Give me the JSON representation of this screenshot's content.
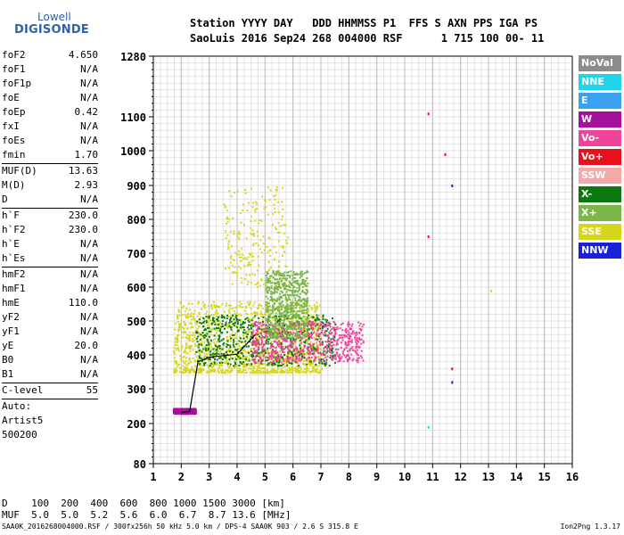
{
  "logo": {
    "line1": "Lowell",
    "line2": "DIGISONDE"
  },
  "header": {
    "line1": "Station YYYY DAY   DDD HHMMSS P1  FFS S AXN PPS IGA PS",
    "line2": "SaoLuis 2016 Sep24 268 004000 RSF      1 715 100 00- 11"
  },
  "params_groups": [
    [
      {
        "name": "foF2",
        "value": "4.650"
      },
      {
        "name": "foF1",
        "value": "N/A"
      },
      {
        "name": "foF1p",
        "value": "N/A"
      },
      {
        "name": "foE",
        "value": "N/A"
      },
      {
        "name": "foEp",
        "value": "0.42"
      },
      {
        "name": "fxI",
        "value": "N/A"
      },
      {
        "name": "foEs",
        "value": "N/A"
      },
      {
        "name": "fmin",
        "value": "1.70"
      }
    ],
    [
      {
        "name": "MUF(D)",
        "value": "13.63"
      },
      {
        "name": "M(D)",
        "value": "2.93"
      },
      {
        "name": "D",
        "value": "N/A"
      }
    ],
    [
      {
        "name": "h`F",
        "value": "230.0"
      },
      {
        "name": "h`F2",
        "value": "230.0"
      },
      {
        "name": "h`E",
        "value": "N/A"
      },
      {
        "name": "h`Es",
        "value": "N/A"
      }
    ],
    [
      {
        "name": "hmF2",
        "value": "N/A"
      },
      {
        "name": "hmF1",
        "value": "N/A"
      },
      {
        "name": "hmE",
        "value": "110.0"
      },
      {
        "name": "yF2",
        "value": "N/A"
      },
      {
        "name": "yF1",
        "value": "N/A"
      },
      {
        "name": "yE",
        "value": "20.0"
      },
      {
        "name": "B0",
        "value": "N/A"
      },
      {
        "name": "B1",
        "value": "N/A"
      }
    ],
    [
      {
        "name": "C-level",
        "value": "55"
      }
    ]
  ],
  "autoscale": {
    "line1": "Auto:",
    "line2": "Artist5",
    "line3": "500200"
  },
  "legend": [
    {
      "label": "NoVal",
      "color": "#8c8c8c"
    },
    {
      "label": "NNE",
      "color": "#22d3e8"
    },
    {
      "label": "E",
      "color": "#3aa0f0"
    },
    {
      "label": "W",
      "color": "#a5109a"
    },
    {
      "label": "Vo-",
      "color": "#f0449a"
    },
    {
      "label": "Vo+",
      "color": "#e8101c"
    },
    {
      "label": "SSW",
      "color": "#f4a8a8"
    },
    {
      "label": "X-",
      "color": "#0a7a10"
    },
    {
      "label": "X+",
      "color": "#7ab648"
    },
    {
      "label": "SSE",
      "color": "#d6d61a"
    },
    {
      "label": "NNW",
      "color": "#1a20d8"
    }
  ],
  "bottom": {
    "row1_label": "D",
    "row1": "100  200  400  600  800 1000 1500 3000 [km]",
    "row2_label": "MUF",
    "row2": "5.0  5.0  5.2  5.6  6.0  6.7  8.7 13.6 [MHz]"
  },
  "footer": {
    "left": "SAA0K_2016268004000.RSF / 300fx256h 50 kHz 5.0 km / DPS-4 SAA0K 903 / 2.6 S 315.8 E",
    "right": "Ion2Png 1.3.17"
  },
  "chart_data": {
    "type": "scatter",
    "x_ticks": [
      "1",
      "2",
      "3",
      "4",
      "5",
      "6",
      "7",
      "8",
      "9",
      "10",
      "11",
      "12",
      "13",
      "14",
      "15",
      "16"
    ],
    "y_ticks": [
      "1280",
      "1100",
      "1000",
      "900",
      "800",
      "700",
      "600",
      "500",
      "400",
      "300",
      "200",
      "80"
    ],
    "x_range": [
      1,
      16
    ],
    "y_scale": "nonlinear (ionogram virtual height, km)",
    "grid": true,
    "clusters": [
      {
        "series": "SSE",
        "x": [
          1.7,
          7.0
        ],
        "y": [
          350,
          560
        ],
        "density": "high"
      },
      {
        "series": "X-",
        "x": [
          2.5,
          7.5
        ],
        "y": [
          370,
          520
        ],
        "density": "medium"
      },
      {
        "series": "Vo-",
        "x": [
          4.5,
          8.5
        ],
        "y": [
          380,
          500
        ],
        "density": "medium"
      },
      {
        "series": "W",
        "x": [
          1.7,
          2.5
        ],
        "y": [
          230,
          245
        ],
        "density": "medium"
      },
      {
        "series": "SSE",
        "x": [
          3.5,
          5.8
        ],
        "y": [
          600,
          900
        ],
        "density": "low"
      },
      {
        "series": "X+",
        "x": [
          5.0,
          6.5
        ],
        "y": [
          450,
          650
        ],
        "density": "medium"
      }
    ],
    "trace_line": {
      "color": "#000000",
      "x": [
        2.0,
        2.3,
        2.6,
        3.0,
        3.5,
        4.0,
        4.65
      ],
      "y": [
        232,
        235,
        380,
        393,
        398,
        402,
        460
      ]
    },
    "outliers": [
      {
        "series": "Vo+",
        "x": 10.85,
        "y": 1110
      },
      {
        "series": "Vo+",
        "x": 11.45,
        "y": 990
      },
      {
        "series": "NNW",
        "x": 11.7,
        "y": 900
      },
      {
        "series": "Vo+",
        "x": 10.85,
        "y": 750
      },
      {
        "series": "Vo+",
        "x": 11.7,
        "y": 360
      },
      {
        "series": "NNW",
        "x": 11.7,
        "y": 320
      },
      {
        "series": "NNE",
        "x": 10.85,
        "y": 190
      },
      {
        "series": "SSE",
        "x": 13.1,
        "y": 590
      }
    ]
  }
}
